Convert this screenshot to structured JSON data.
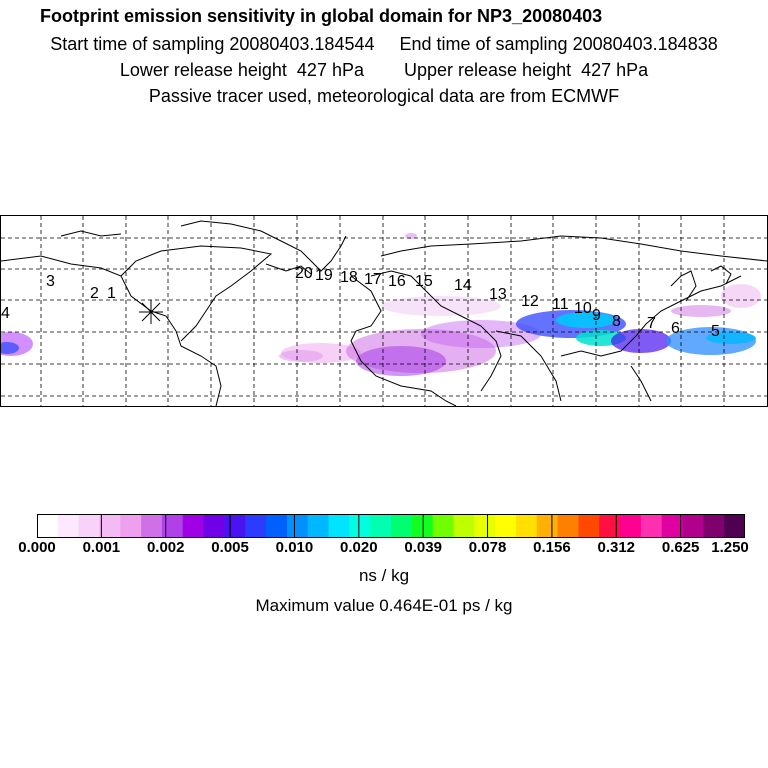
{
  "header": {
    "title": "Footprint emission sensitivity in global domain for NP3_20080403",
    "sampling_line": "Start time of sampling 20080403.184544     End time of sampling 20080403.184838",
    "height_line": "Lower release height  427 hPa        Upper release height  427 hPa",
    "tracer_line": "Passive tracer used, meteorological data are from ECMWF"
  },
  "map": {
    "release_marker": "asterisk",
    "trajectory_labels": [
      "20",
      "19",
      "18",
      "17",
      "16",
      "15",
      "14",
      "13",
      "12",
      "11",
      "10",
      "9",
      "8",
      "7",
      "6",
      "5",
      "4",
      "3",
      "2",
      "1"
    ]
  },
  "colorbar": {
    "colors": [
      "#ffffff",
      "#fde9fd",
      "#f8d2f8",
      "#f4baf4",
      "#eea0ee",
      "#d070e6",
      "#b040e8",
      "#a000e6",
      "#7000e8",
      "#4a14f0",
      "#2c3cff",
      "#0060ff",
      "#0090ff",
      "#00b8ff",
      "#00e4ff",
      "#00ffe0",
      "#00ffb0",
      "#00ff70",
      "#10ff20",
      "#70ff00",
      "#c0ff00",
      "#e8ff00",
      "#ffff00",
      "#ffe000",
      "#ffb000",
      "#ff8000",
      "#ff4800",
      "#ff1040",
      "#ff0090",
      "#ff30b0",
      "#e000a0",
      "#b0008c",
      "#80006e",
      "#500050"
    ],
    "tick_labels": [
      "0.000",
      "0.001",
      "0.002",
      "0.005",
      "0.010",
      "0.020",
      "0.039",
      "0.078",
      "0.156",
      "0.312",
      "0.625",
      "1.250"
    ],
    "units": "ns / kg"
  },
  "footer": {
    "maximum": "Maximum value  0.464E-01 ps / kg"
  }
}
